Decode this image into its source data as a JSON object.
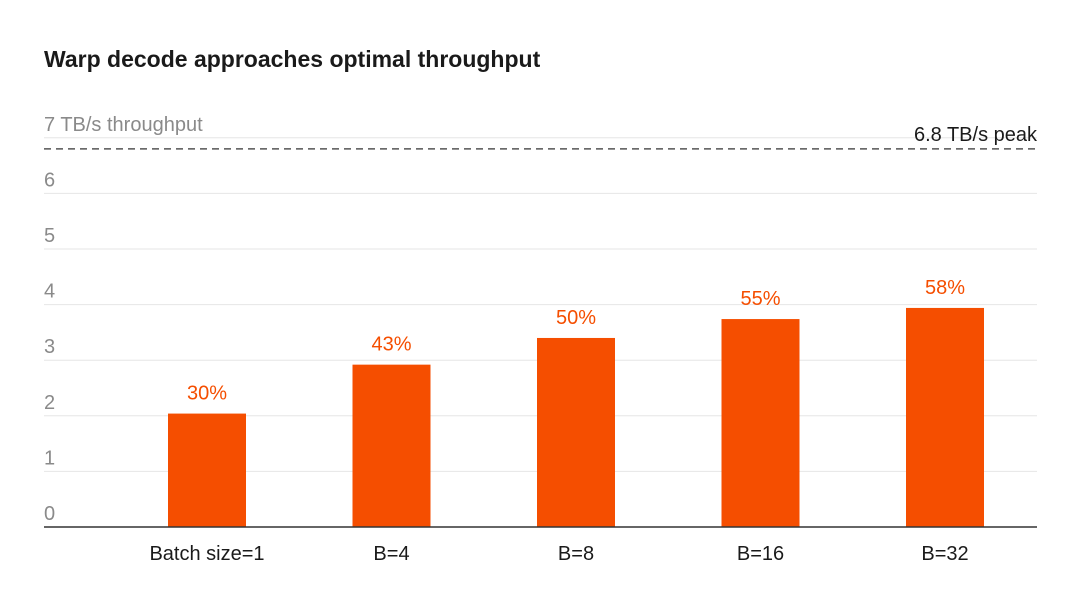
{
  "chart_data": {
    "type": "bar",
    "title": "Warp decode approaches optimal throughput",
    "categories": [
      "Batch size=1",
      "B=4",
      "B=8",
      "B=16",
      "B=32"
    ],
    "values": [
      2.04,
      2.92,
      3.4,
      3.74,
      3.94
    ],
    "data_labels": [
      "30%",
      "43%",
      "50%",
      "55%",
      "58%"
    ],
    "y_ticks": [
      "0",
      "1",
      "2",
      "3",
      "4",
      "5",
      "6",
      "7 TB/s throughput"
    ],
    "ylim": [
      0,
      7
    ],
    "grid": true,
    "reference_line": {
      "value": 6.8,
      "label": "6.8 TB/s peak"
    },
    "colors": {
      "bar": "#F54E00",
      "label": "#F54E00",
      "axis_text": "#8a8a8a",
      "grid": "#e6e6e6",
      "text": "#1a1a1a"
    }
  }
}
